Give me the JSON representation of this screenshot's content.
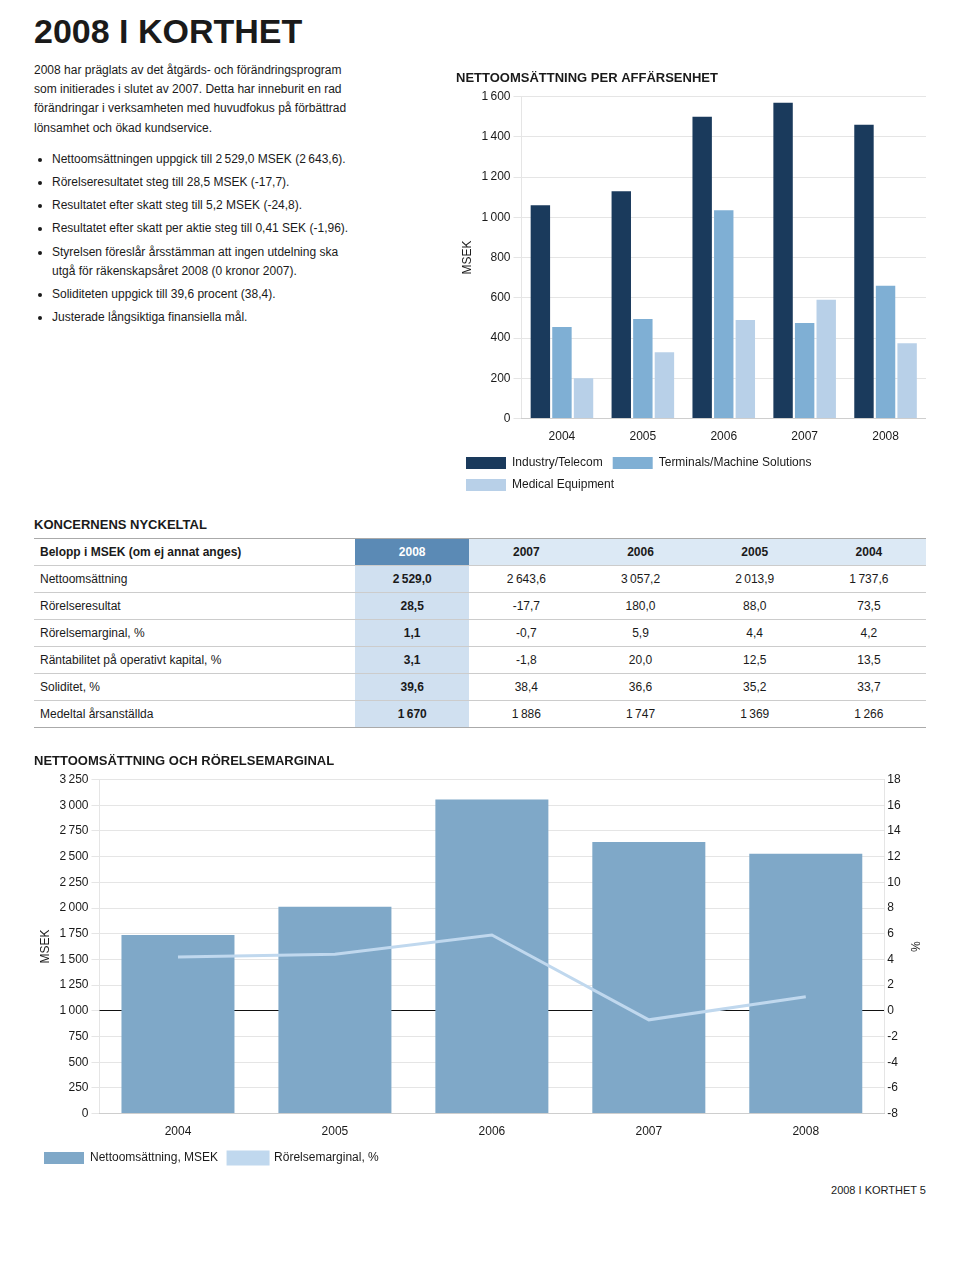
{
  "title": "2008 I KORTHET",
  "paragraph": "2008 har präglats av det åtgärds- och förändringsprogram\nsom initierades i slutet av 2007. Detta har inneburit en rad\nförändringar i verksamheten med huvudfokus på förbättrad\nlönsamhet och ökad kundservice.",
  "bullet_points": [
    "Nettoomsättningen uppgick till 2 529,0 MSEK (2 643,6).",
    "Rörelseresultatet steg till 28,5 MSEK (-17,7).",
    "Resultatet efter skatt steg till 5,2 MSEK (-24,8).",
    "Resultatet efter skatt per aktie steg till 0,41 SEK (-1,96).",
    "Styrelsen föreslår årsstämman att ingen utdelning ska\n   utgå för räkenskapsåret 2008 (0 kronor 2007).",
    "Soliditeten uppgick till 39,6 procent (38,4).",
    "Justerade långsiktiga finansiella mål."
  ],
  "table": {
    "title": "KONCERNENS NYCKELTAL",
    "header": [
      "Belopp i MSEK (om ej annat anges)",
      "2008",
      "2007",
      "2006",
      "2005",
      "2004"
    ],
    "rows": [
      [
        "Nettoomsättning",
        "2 529,0",
        "2 643,6",
        "3 057,2",
        "2 013,9",
        "1 737,6"
      ],
      [
        "Rörelseresultat",
        "28,5",
        "-17,7",
        "180,0",
        "88,0",
        "73,5"
      ],
      [
        "Rörelsemarginal, %",
        "1,1",
        "-0,7",
        "5,9",
        "4,4",
        "4,2"
      ],
      [
        "Räntabilitet på operativt kapital, %",
        "3,1",
        "-1,8",
        "20,0",
        "12,5",
        "13,5"
      ],
      [
        "Soliditet, %",
        "39,6",
        "38,4",
        "36,6",
        "35,2",
        "33,7"
      ],
      [
        "Medeltal årsanställda",
        "1 670",
        "1 886",
        "1 747",
        "1 369",
        "1 266"
      ]
    ]
  },
  "footer": "2008 I KORTHET 5",
  "chart_data": [
    {
      "type": "bar",
      "title": "NETTOOMSÄTTNING PER AFFÄRSENHET",
      "ylabel": "MSEK",
      "categories": [
        "2004",
        "2005",
        "2006",
        "2007",
        "2008"
      ],
      "series": [
        {
          "name": "Industry/Telecom",
          "color": "#1a3a5c",
          "values": [
            1060,
            1130,
            1500,
            1570,
            1460
          ]
        },
        {
          "name": "Terminals/Machine Solutions",
          "color": "#7fafd4",
          "values": [
            455,
            495,
            1035,
            475,
            660
          ]
        },
        {
          "name": "Medical Equipment",
          "color": "#b8d0e8",
          "values": [
            200,
            330,
            490,
            590,
            375
          ]
        }
      ],
      "ylim": [
        0,
        1600
      ],
      "yticks": [
        0,
        200,
        400,
        600,
        800,
        {
          "value": 1000,
          "label": "1 000"
        },
        {
          "value": 1200,
          "label": "1 200"
        },
        {
          "value": 1400,
          "label": "1 400"
        },
        {
          "value": 1600,
          "label": "1 600"
        }
      ],
      "grid": true,
      "legend": "bottom"
    },
    {
      "type": "bar",
      "title": "NETTOOMSÄTTNING OCH RÖRELSEMARGINAL",
      "ylabel": "MSEK",
      "y2label": "%",
      "categories": [
        "2004",
        "2005",
        "2006",
        "2007",
        "2008"
      ],
      "series": [
        {
          "name": "Nettoomsättning, MSEK",
          "type": "bar",
          "color": "#7fa8c8",
          "values": [
            1737.6,
            2013.9,
            3057.2,
            2643.6,
            2529.0
          ]
        },
        {
          "name": "Rörelsemarginal, %",
          "type": "line",
          "color": "#c0d8ee",
          "axis": "y2",
          "values": [
            4.2,
            4.4,
            5.9,
            -0.7,
            1.1
          ]
        }
      ],
      "ylim": [
        0,
        3250
      ],
      "yticks": [
        0,
        250,
        500,
        750,
        {
          "value": 1000,
          "label": "1 000"
        },
        {
          "value": 1250,
          "label": "1 250"
        },
        {
          "value": 1500,
          "label": "1 500"
        },
        {
          "value": 1750,
          "label": "1 750"
        },
        {
          "value": 2000,
          "label": "2 000"
        },
        {
          "value": 2250,
          "label": "2 250"
        },
        {
          "value": 2500,
          "label": "2 500"
        },
        {
          "value": 2750,
          "label": "2 750"
        },
        {
          "value": 3000,
          "label": "3 000"
        },
        {
          "value": 3250,
          "label": "3 250"
        }
      ],
      "y2lim": [
        -8,
        18
      ],
      "y2ticks": [
        -8,
        -6,
        -4,
        -2,
        0,
        2,
        4,
        6,
        8,
        10,
        12,
        14,
        16,
        18
      ],
      "grid": true,
      "legend": "bottom"
    }
  ]
}
